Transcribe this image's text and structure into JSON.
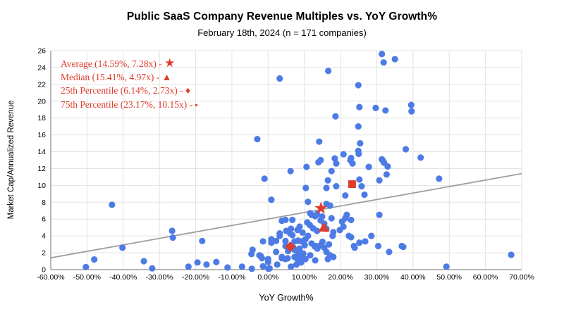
{
  "chart_data": {
    "type": "scatter",
    "title": "Public SaaS Company Revenue Multiples vs. YoY Growth%",
    "subtitle": "February 18th, 2024 (n = 171 companies)",
    "xlabel": "YoY Growth%",
    "ylabel": "Market Cap/Annualized Revenue",
    "xlim": [
      -60,
      70
    ],
    "ylim": [
      0,
      26
    ],
    "grid": true,
    "legend_position": "top-left-inside",
    "x_tick_values": [
      -60,
      -50,
      -40,
      -30,
      -20,
      -10,
      0,
      10,
      20,
      30,
      40,
      50,
      60,
      70
    ],
    "x_tick_labels": [
      "-60.00%",
      "-50.00%",
      "-40.00%",
      "-30.00%",
      "-20.00%",
      "-10.00%",
      "0.00%",
      "10.00%",
      "20.00%",
      "30.00%",
      "40.00%",
      "50.00%",
      "60.00%",
      "70.00%"
    ],
    "y_tick_values": [
      0,
      2,
      4,
      6,
      8,
      10,
      12,
      14,
      16,
      18,
      20,
      22,
      24,
      26
    ],
    "y_tick_labels": [
      "0",
      "2",
      "4",
      "6",
      "8",
      "10",
      "12",
      "14",
      "16",
      "18",
      "20",
      "22",
      "24",
      "26"
    ],
    "colors": {
      "points": "#4d7be6",
      "accent": "#df3c2c",
      "trendline": "#9e9e9e",
      "grid": "#e3e3e3",
      "axis": "#6f6f6f",
      "text": "#000000"
    },
    "trendline": {
      "x1": -60,
      "y1": 1.4,
      "x2": 70,
      "y2": 11.4
    },
    "stats": [
      {
        "name": "average",
        "marker": "star",
        "x": 14.59,
        "y": 7.28,
        "label": "Average (14.59%, 7.28x)"
      },
      {
        "name": "median",
        "marker": "triangle",
        "x": 15.41,
        "y": 4.97,
        "label": "Median (15.41%, 4.97x)"
      },
      {
        "name": "25th-percentile",
        "marker": "diamond",
        "x": 6.14,
        "y": 2.73,
        "label": "25th Percentile (6.14%, 2.73x)"
      },
      {
        "name": "75th-percentile",
        "marker": "square",
        "x": 23.17,
        "y": 10.15,
        "label": "75th Percentile (23.17%, 10.15x)"
      }
    ],
    "legend": [
      {
        "label": "Average (14.59%, 7.28x) - ",
        "glyph": "★",
        "marker": "star"
      },
      {
        "label": "Median (15.41%, 4.97x) - ",
        "glyph": "▲",
        "marker": "triangle"
      },
      {
        "label": "25th Percentile (6.14%, 2.73x) - ",
        "glyph": "♦",
        "marker": "diamond"
      },
      {
        "label": "75th Percentile (23.17%, 10.15x) - ",
        "glyph": "▪",
        "marker": "square"
      }
    ],
    "points": [
      [
        -50.3,
        0.3
      ],
      [
        -48,
        1.2
      ],
      [
        -43.1,
        7.7
      ],
      [
        -40.2,
        2.6
      ],
      [
        -34.3,
        1
      ],
      [
        -32,
        0.15
      ],
      [
        -26.5,
        4.6
      ],
      [
        -26.3,
        3.8
      ],
      [
        -22,
        0.35
      ],
      [
        -19.5,
        0.85
      ],
      [
        -18.2,
        3.4
      ],
      [
        -17,
        0.6
      ],
      [
        -14.3,
        0.9
      ],
      [
        -11.2,
        0.25
      ],
      [
        -7.2,
        0.35
      ],
      [
        -4.6,
        1.85
      ],
      [
        -4.3,
        2.35
      ],
      [
        -4.5,
        0.1
      ],
      [
        -3,
        15.5
      ],
      [
        -2.4,
        1.7
      ],
      [
        -2,
        1.6
      ],
      [
        -1.7,
        1.35
      ],
      [
        -1.4,
        3.35
      ],
      [
        -1.4,
        0.4
      ],
      [
        -1,
        10.8
      ],
      [
        0,
        1.25
      ],
      [
        0,
        0.9
      ],
      [
        0.1,
        0.1
      ],
      [
        0.4,
        0.15
      ],
      [
        0.9,
        8.3
      ],
      [
        0.9,
        3.6
      ],
      [
        0.9,
        3.2
      ],
      [
        2.2,
        3.4
      ],
      [
        2.2,
        2.1
      ],
      [
        2.5,
        0.6
      ],
      [
        3.2,
        22.7
      ],
      [
        3.2,
        4.3
      ],
      [
        3.2,
        4
      ],
      [
        3.8,
        5.8
      ],
      [
        3.8,
        1.5
      ],
      [
        3.8,
        1.35
      ],
      [
        4.8,
        5.9
      ],
      [
        4.8,
        3.4
      ],
      [
        4.8,
        2.8
      ],
      [
        4.8,
        1.25
      ],
      [
        5,
        4.6
      ],
      [
        5.4,
        1.35
      ],
      [
        5.5,
        2.2
      ],
      [
        6.1,
        4.3
      ],
      [
        6.2,
        11.7
      ],
      [
        6.3,
        4.85
      ],
      [
        6.3,
        0.35
      ],
      [
        6.7,
        5.9
      ],
      [
        6.7,
        4.1
      ],
      [
        7,
        2.6
      ],
      [
        7.3,
        3.35
      ],
      [
        7.3,
        2.35
      ],
      [
        7.3,
        1.5
      ],
      [
        7.8,
        0.6
      ],
      [
        8.1,
        4.7
      ],
      [
        8.1,
        1.25
      ],
      [
        8.3,
        3.45
      ],
      [
        8.3,
        3.4
      ],
      [
        8.3,
        1.9
      ],
      [
        8.7,
        5.1
      ],
      [
        8.7,
        2.5
      ],
      [
        9.1,
        0.85
      ],
      [
        9.3,
        3.35
      ],
      [
        9.3,
        1.5
      ],
      [
        9.5,
        4.4
      ],
      [
        9.7,
        1.9
      ],
      [
        10.1,
        2.9
      ],
      [
        10.3,
        3.6
      ],
      [
        10.3,
        1.25
      ],
      [
        10.4,
        9.7
      ],
      [
        10.6,
        12.2
      ],
      [
        10.8,
        5.6
      ],
      [
        11,
        8.05
      ],
      [
        11,
        4
      ],
      [
        11.5,
        5.3
      ],
      [
        11.6,
        6.7
      ],
      [
        11.6,
        1.7
      ],
      [
        12,
        6.5
      ],
      [
        12,
        3.1
      ],
      [
        12.4,
        4.9
      ],
      [
        12.9,
        2.75
      ],
      [
        13,
        6.35
      ],
      [
        13,
        1.1
      ],
      [
        13.2,
        2.8
      ],
      [
        13.5,
        6.6
      ],
      [
        13.5,
        4.6
      ],
      [
        13.6,
        2.5
      ],
      [
        13.9,
        12.75
      ],
      [
        14.1,
        15.2
      ],
      [
        14.5,
        13
      ],
      [
        14.5,
        5.85
      ],
      [
        14.5,
        2.9
      ],
      [
        14.9,
        6.3
      ],
      [
        15,
        3.3
      ],
      [
        15.5,
        5.45
      ],
      [
        15.5,
        2.6
      ],
      [
        16.1,
        9.7
      ],
      [
        16.1,
        7.8
      ],
      [
        16.1,
        4.85
      ],
      [
        16.1,
        2.1
      ],
      [
        16.5,
        10.6
      ],
      [
        16.5,
        1.25
      ],
      [
        16.6,
        23.6
      ],
      [
        16.8,
        3
      ],
      [
        17.1,
        7.6
      ],
      [
        17.1,
        1.7
      ],
      [
        17.5,
        11.7
      ],
      [
        17.5,
        6.1
      ],
      [
        17.8,
        4
      ],
      [
        18,
        4.45
      ],
      [
        18,
        1.5
      ],
      [
        18.4,
        13.2
      ],
      [
        18.6,
        18.2
      ],
      [
        18.8,
        12.6
      ],
      [
        18.8,
        9.9
      ],
      [
        19.8,
        4.7
      ],
      [
        20.4,
        5.7
      ],
      [
        20.8,
        13.7
      ],
      [
        20.8,
        5.1
      ],
      [
        21.3,
        8.8
      ],
      [
        21.3,
        6.1
      ],
      [
        21.7,
        6.5
      ],
      [
        22.3,
        4
      ],
      [
        22.7,
        13
      ],
      [
        22.9,
        13.25
      ],
      [
        22.9,
        5.9
      ],
      [
        22.9,
        3.85
      ],
      [
        23.3,
        12.6
      ],
      [
        23.7,
        2.8
      ],
      [
        23.9,
        2.6
      ],
      [
        24.9,
        21.9
      ],
      [
        24.9,
        17
      ],
      [
        24.9,
        14.1
      ],
      [
        25,
        13.75
      ],
      [
        25.2,
        19.3
      ],
      [
        25.2,
        10.7
      ],
      [
        25.2,
        3.2
      ],
      [
        25.4,
        15
      ],
      [
        25.8,
        9.9
      ],
      [
        26.6,
        8.9
      ],
      [
        26.8,
        3.35
      ],
      [
        27.8,
        12.2
      ],
      [
        28.5,
        4
      ],
      [
        29.7,
        19.2
      ],
      [
        30.4,
        2.8
      ],
      [
        30.7,
        10.6
      ],
      [
        30.7,
        6.5
      ],
      [
        31.4,
        25.6
      ],
      [
        31.4,
        13.1
      ],
      [
        31.6,
        13
      ],
      [
        31.9,
        24.6
      ],
      [
        32,
        12.7
      ],
      [
        32.4,
        18.9
      ],
      [
        32.7,
        11.3
      ],
      [
        33,
        12.25
      ],
      [
        33.4,
        2.1
      ],
      [
        35,
        25
      ],
      [
        36.9,
        2.8
      ],
      [
        37.3,
        2.7
      ],
      [
        38,
        14.3
      ],
      [
        39.5,
        19.55
      ],
      [
        39.6,
        18.8
      ],
      [
        42.1,
        13.3
      ],
      [
        47.2,
        10.8
      ],
      [
        49.2,
        0.35
      ],
      [
        67.1,
        1.76
      ]
    ]
  }
}
